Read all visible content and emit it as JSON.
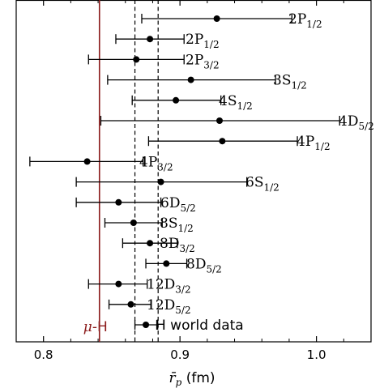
{
  "chart_data": {
    "type": "scatter",
    "subtype": "error-bar-forest",
    "xlabel_main": "r̄",
    "xlabel_sub": "p",
    "xlabel_unit": "(fm)",
    "xlim": [
      0.78,
      1.04
    ],
    "xticks": [
      0.8,
      0.9,
      1.0
    ],
    "xtick_labels": [
      "0.8",
      "0.9",
      "1.0"
    ],
    "reference_lines": {
      "muH": {
        "value": 0.841,
        "label_main": "μ",
        "label_rest": "-H",
        "color": "#8b1a1a"
      },
      "dashed": [
        0.867,
        0.884
      ]
    },
    "points": [
      {
        "label": "2P",
        "sub": "1/2",
        "value": 0.927,
        "lo": 0.872,
        "hi": 0.982
      },
      {
        "label": "2P",
        "sub": "1/2",
        "value": 0.878,
        "lo": 0.853,
        "hi": 0.903
      },
      {
        "label": "2P",
        "sub": "3/2",
        "value": 0.868,
        "lo": 0.833,
        "hi": 0.903
      },
      {
        "label": "3S",
        "sub": "1/2",
        "value": 0.908,
        "lo": 0.847,
        "hi": 0.97
      },
      {
        "label": "4S",
        "sub": "1/2",
        "value": 0.897,
        "lo": 0.865,
        "hi": 0.93
      },
      {
        "label": "4D",
        "sub": "5/2",
        "value": 0.929,
        "lo": 0.842,
        "hi": 1.017
      },
      {
        "label": "4P",
        "sub": "1/2",
        "value": 0.931,
        "lo": 0.877,
        "hi": 0.986
      },
      {
        "label": "4P",
        "sub": "3/2",
        "value": 0.832,
        "lo": 0.79,
        "hi": 0.873
      },
      {
        "label": "6S",
        "sub": "1/2",
        "value": 0.886,
        "lo": 0.824,
        "hi": 0.949
      },
      {
        "label": "6D",
        "sub": "5/2",
        "value": 0.855,
        "lo": 0.824,
        "hi": 0.886
      },
      {
        "label": "8S",
        "sub": "1/2",
        "value": 0.866,
        "lo": 0.845,
        "hi": 0.887
      },
      {
        "label": "8D",
        "sub": "3/2",
        "value": 0.878,
        "lo": 0.858,
        "hi": 0.898
      },
      {
        "label": "8D",
        "sub": "5/2",
        "value": 0.89,
        "lo": 0.875,
        "hi": 0.905
      },
      {
        "label": "12D",
        "sub": "3/2",
        "value": 0.855,
        "lo": 0.833,
        "hi": 0.876
      },
      {
        "label": "12D",
        "sub": "5/2",
        "value": 0.864,
        "lo": 0.848,
        "hi": 0.879
      },
      {
        "label": "H world data",
        "sub": "",
        "value": 0.875,
        "lo": 0.867,
        "hi": 0.883
      }
    ],
    "grid": false,
    "legend": "none"
  }
}
